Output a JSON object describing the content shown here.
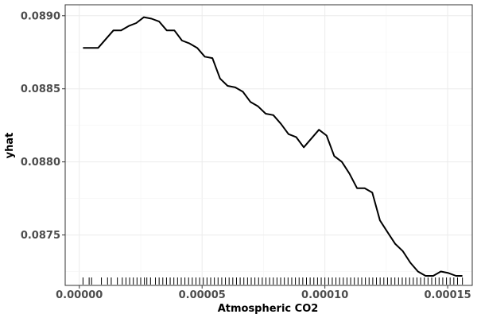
{
  "chart_data": {
    "type": "line",
    "title": "",
    "xlabel": "Atmospheric CO2",
    "ylabel": "yhat",
    "xlim": [
      -5.75e-06,
      0.00016
    ],
    "ylim": [
      0.087155,
      0.089075
    ],
    "x_ticks": [
      {
        "value": 0.0,
        "label": "0.00000"
      },
      {
        "value": 5e-05,
        "label": "0.00005"
      },
      {
        "value": 0.0001,
        "label": "0.00010"
      },
      {
        "value": 0.00015,
        "label": "0.00015"
      }
    ],
    "y_ticks": [
      {
        "value": 0.0875,
        "label": "0.0875"
      },
      {
        "value": 0.088,
        "label": "0.0880"
      },
      {
        "value": 0.0885,
        "label": "0.0885"
      },
      {
        "value": 0.089,
        "label": "0.0890"
      }
    ],
    "grid": true,
    "series": [
      {
        "color": "#000000",
        "x": [
          1.5e-06,
          4.6e-06,
          7.7e-06,
          1.08e-05,
          1.39e-05,
          1.7e-05,
          2.01e-05,
          2.32e-05,
          2.63e-05,
          2.94e-05,
          3.25e-05,
          3.56e-05,
          3.87e-05,
          4.18e-05,
          4.49e-05,
          4.8e-05,
          5.11e-05,
          5.42e-05,
          5.73e-05,
          6.04e-05,
          6.35e-05,
          6.66e-05,
          6.97e-05,
          7.28e-05,
          7.59e-05,
          7.9e-05,
          8.21e-05,
          8.52e-05,
          8.83e-05,
          9.14e-05,
          9.45e-05,
          9.76e-05,
          0.0001007,
          0.0001038,
          0.0001069,
          0.00011,
          0.0001131,
          0.0001162,
          0.0001193,
          0.0001224,
          0.0001255,
          0.0001286,
          0.0001317,
          0.0001348,
          0.0001379,
          0.000141,
          0.0001441,
          0.0001472,
          0.0001503,
          0.0001534,
          0.000156
        ],
        "y": [
          0.08878,
          0.08878,
          0.08878,
          0.08884,
          0.0889,
          0.0889,
          0.08893,
          0.08895,
          0.08899,
          0.08898,
          0.08896,
          0.0889,
          0.0889,
          0.08883,
          0.08881,
          0.08878,
          0.08872,
          0.08871,
          0.08857,
          0.08852,
          0.08851,
          0.08848,
          0.08841,
          0.08838,
          0.08833,
          0.08832,
          0.08826,
          0.08819,
          0.08817,
          0.0881,
          0.08816,
          0.08822,
          0.08818,
          0.08804,
          0.088,
          0.08792,
          0.08782,
          0.08782,
          0.08779,
          0.0876,
          0.08752,
          0.08744,
          0.08739,
          0.08731,
          0.08725,
          0.08722,
          0.08722,
          0.08725,
          0.08724,
          0.08722,
          0.08722
        ]
      }
    ],
    "rug_x": [
      1.5e-06,
      4e-06,
      5e-06,
      9e-06,
      1.15e-05,
      1.3e-05,
      1.55e-05,
      1.75e-05,
      1.9e-05,
      2.05e-05,
      2.2e-05,
      2.35e-05,
      2.5e-05,
      2.65e-05,
      2.75e-05,
      2.9e-05,
      3.1e-05,
      3.25e-05,
      3.4e-05,
      3.55e-05,
      3.7e-05,
      3.85e-05,
      4e-05,
      4.15e-05,
      4.3e-05,
      4.45e-05,
      4.6e-05,
      4.75e-05,
      4.9e-05,
      5.05e-05,
      5.2e-05,
      5.35e-05,
      5.5e-05,
      5.65e-05,
      5.8e-05,
      5.95e-05,
      6.1e-05,
      6.25e-05,
      6.4e-05,
      6.55e-05,
      6.7e-05,
      6.85e-05,
      7e-05,
      7.15e-05,
      7.3e-05,
      7.45e-05,
      7.6e-05,
      7.75e-05,
      7.9e-05,
      8.05e-05,
      8.2e-05,
      8.35e-05,
      8.5e-05,
      8.65e-05,
      8.8e-05,
      8.95e-05,
      9.1e-05,
      9.25e-05,
      9.4e-05,
      9.55e-05,
      9.7e-05,
      9.85e-05,
      0.0001,
      0.0001015,
      0.000103,
      0.0001045,
      0.000106,
      0.0001075,
      0.000109,
      0.0001105,
      0.000112,
      0.0001135,
      0.000115,
      0.0001165,
      0.000118,
      0.0001195,
      0.000121,
      0.0001225,
      0.000124,
      0.0001255,
      0.000127,
      0.0001285,
      0.00013,
      0.0001315,
      0.000133,
      0.0001345,
      0.000136,
      0.0001375,
      0.000139,
      0.0001405,
      0.000142,
      0.0001435,
      0.000145,
      0.0001465,
      0.000148,
      0.0001495,
      0.000151,
      0.0001525,
      0.000154,
      0.000156
    ]
  }
}
